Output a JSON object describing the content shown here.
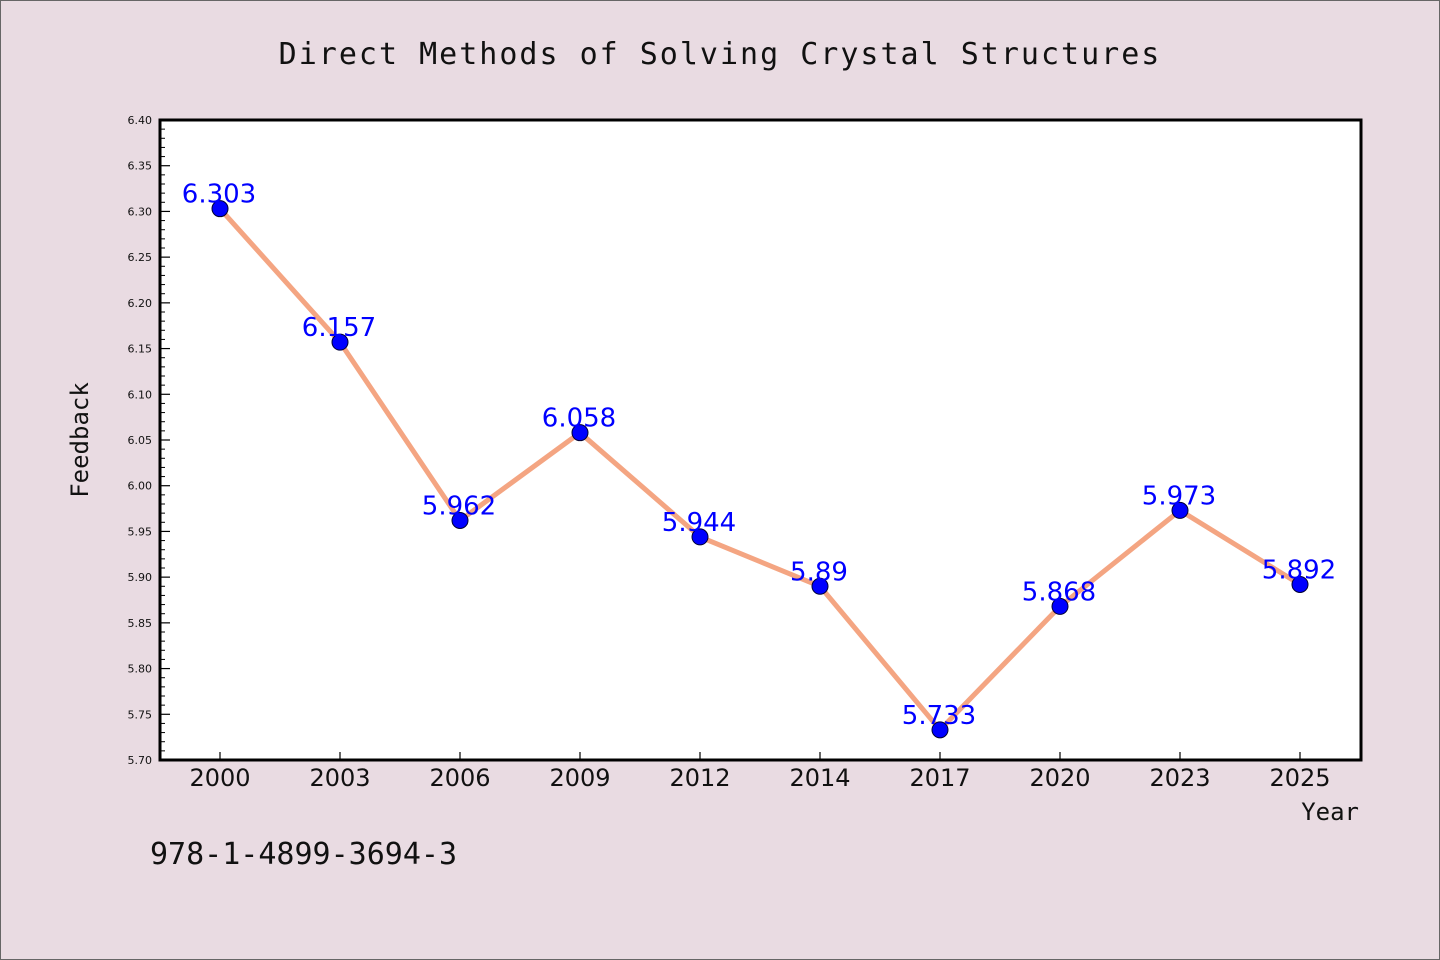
{
  "chart_data": {
    "type": "line",
    "title": "Direct Methods of Solving Crystal Structures",
    "xlabel": "Year",
    "ylabel": "Feedback",
    "categories": [
      "2000",
      "2003",
      "2006",
      "2009",
      "2012",
      "2014",
      "2017",
      "2020",
      "2023",
      "2025"
    ],
    "series": [
      {
        "values": [
          6.303,
          6.157,
          5.962,
          6.058,
          5.944,
          5.89,
          5.733,
          5.868,
          5.973,
          5.892
        ],
        "data_labels": [
          "6.303",
          "6.157",
          "5.962",
          "6.058",
          "5.944",
          "5.89",
          "5.733",
          "5.868",
          "5.973",
          "5.892"
        ]
      }
    ],
    "ylim": [
      5.7,
      6.4
    ],
    "y_ticks": [
      "5.70",
      "5.75",
      "5.80",
      "5.85",
      "5.90",
      "5.95",
      "6.00",
      "6.05",
      "6.10",
      "6.15",
      "6.20",
      "6.25",
      "6.30",
      "6.35",
      "6.40"
    ],
    "grid": false,
    "legend": "none",
    "colors": {
      "line": "#f4a582",
      "marker": "#0000ff",
      "data_label": "#0000ff",
      "background": "#e9dbe2",
      "plot_area": "#ffffff"
    }
  },
  "annotation": {
    "isbn": "978-1-4899-3694-3"
  }
}
